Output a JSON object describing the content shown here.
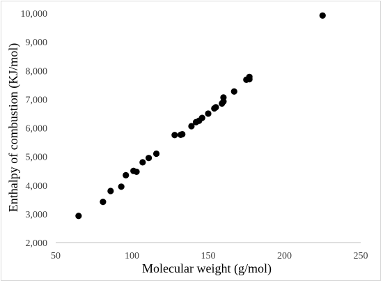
{
  "chart_data": {
    "type": "scatter",
    "title": "",
    "xlabel": "Molecular weight (g/mol)",
    "ylabel": "Enthalpy of combustion (KJ/mol)",
    "xlim": [
      50,
      250
    ],
    "ylim": [
      2000,
      10000
    ],
    "x_ticks": [
      50,
      100,
      150,
      200,
      250
    ],
    "x_tick_labels": [
      "50",
      "100",
      "150",
      "200",
      "250"
    ],
    "y_ticks": [
      2000,
      3000,
      4000,
      5000,
      6000,
      7000,
      8000,
      9000,
      10000
    ],
    "y_tick_labels": [
      "2,000",
      "3,000",
      "4,000",
      "5,000",
      "6,000",
      "7,000",
      "8,000",
      "9,000",
      "10,000"
    ],
    "grid": false,
    "legend": "none",
    "marker_color": "#000000",
    "series": [
      {
        "values": [
          {
            "x": 65,
            "y": 2930
          },
          {
            "x": 81,
            "y": 3420
          },
          {
            "x": 86,
            "y": 3800
          },
          {
            "x": 93,
            "y": 3950
          },
          {
            "x": 96,
            "y": 4350
          },
          {
            "x": 101,
            "y": 4500
          },
          {
            "x": 103,
            "y": 4470
          },
          {
            "x": 107,
            "y": 4800
          },
          {
            "x": 111,
            "y": 4950
          },
          {
            "x": 116,
            "y": 5100
          },
          {
            "x": 128,
            "y": 5750
          },
          {
            "x": 132,
            "y": 5760
          },
          {
            "x": 133,
            "y": 5780
          },
          {
            "x": 139,
            "y": 6060
          },
          {
            "x": 142,
            "y": 6200
          },
          {
            "x": 144,
            "y": 6250
          },
          {
            "x": 146,
            "y": 6350
          },
          {
            "x": 150,
            "y": 6500
          },
          {
            "x": 154,
            "y": 6680
          },
          {
            "x": 155,
            "y": 6720
          },
          {
            "x": 159,
            "y": 6850
          },
          {
            "x": 160,
            "y": 6920
          },
          {
            "x": 160,
            "y": 7060
          },
          {
            "x": 167,
            "y": 7270
          },
          {
            "x": 175,
            "y": 7680
          },
          {
            "x": 177,
            "y": 7780
          },
          {
            "x": 177,
            "y": 7700
          },
          {
            "x": 225,
            "y": 9920
          }
        ]
      }
    ]
  }
}
